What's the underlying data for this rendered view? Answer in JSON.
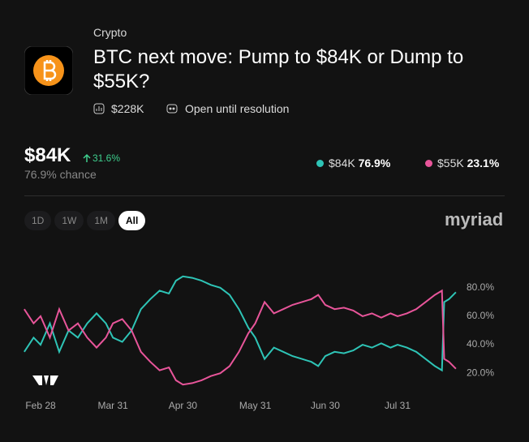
{
  "header": {
    "category": "Crypto",
    "title": "BTC next move: Pump to $84K or Dump to $55K?",
    "volume": "$228K",
    "status": "Open until resolution"
  },
  "summary": {
    "price": "$84K",
    "change": "31.6%",
    "chance": "76.9% chance"
  },
  "ranges": [
    {
      "label": "1D",
      "active": false
    },
    {
      "label": "1W",
      "active": false
    },
    {
      "label": "1M",
      "active": false
    },
    {
      "label": "All",
      "active": true
    }
  ],
  "brand": "myriad",
  "chart_data": {
    "type": "line",
    "x": [
      "Feb 21",
      "Feb 25",
      "Feb 28",
      "Mar 4",
      "Mar 8",
      "Mar 12",
      "Mar 16",
      "Mar 20",
      "Mar 24",
      "Mar 28",
      "Mar 31",
      "Apr 4",
      "Apr 8",
      "Apr 12",
      "Apr 16",
      "Apr 20",
      "Apr 24",
      "Apr 27",
      "Apr 30",
      "May 4",
      "May 8",
      "May 12",
      "May 16",
      "May 20",
      "May 24",
      "May 28",
      "May 31",
      "Jun 4",
      "Jun 8",
      "Jun 12",
      "Jun 16",
      "Jun 20",
      "Jun 24",
      "Jun 27",
      "Jun 30",
      "Jul 4",
      "Jul 8",
      "Jul 12",
      "Jul 16",
      "Jul 20",
      "Jul 24",
      "Jul 28",
      "Jul 31",
      "Aug 4",
      "Aug 8",
      "Aug 12",
      "Aug 16",
      "Aug 19",
      "Aug 20",
      "Aug 22",
      "Aug 25"
    ],
    "series": [
      {
        "name": "$84K",
        "color": "#2ec4b6",
        "current": "76.9%",
        "values": [
          35,
          45,
          40,
          55,
          35,
          50,
          45,
          55,
          62,
          55,
          45,
          42,
          50,
          65,
          72,
          78,
          76,
          85,
          88,
          87,
          85,
          82,
          80,
          75,
          65,
          52,
          45,
          30,
          38,
          35,
          32,
          30,
          28,
          25,
          32,
          35,
          34,
          36,
          40,
          38,
          41,
          38,
          40,
          38,
          35,
          30,
          25,
          22,
          70,
          72,
          76.9
        ]
      },
      {
        "name": "$55K",
        "color": "#e8559a",
        "current": "23.1%",
        "values": [
          65,
          55,
          60,
          45,
          65,
          50,
          55,
          45,
          38,
          45,
          55,
          58,
          50,
          35,
          28,
          22,
          24,
          15,
          12,
          13,
          15,
          18,
          20,
          25,
          35,
          48,
          55,
          70,
          62,
          65,
          68,
          70,
          72,
          75,
          68,
          65,
          66,
          64,
          60,
          62,
          59,
          62,
          60,
          62,
          65,
          70,
          75,
          78,
          30,
          28,
          23.1
        ]
      }
    ],
    "xticks": [
      "Feb 28",
      "Mar 31",
      "Apr 30",
      "May 31",
      "Jun 30",
      "Jul 31"
    ],
    "ylim": [
      3,
      97
    ],
    "yticks": [
      {
        "value": 20,
        "label": "20.0%"
      },
      {
        "value": 40,
        "label": "40.0%"
      },
      {
        "value": 60,
        "label": "60.0%"
      },
      {
        "value": 80,
        "label": "80.0%"
      }
    ]
  }
}
